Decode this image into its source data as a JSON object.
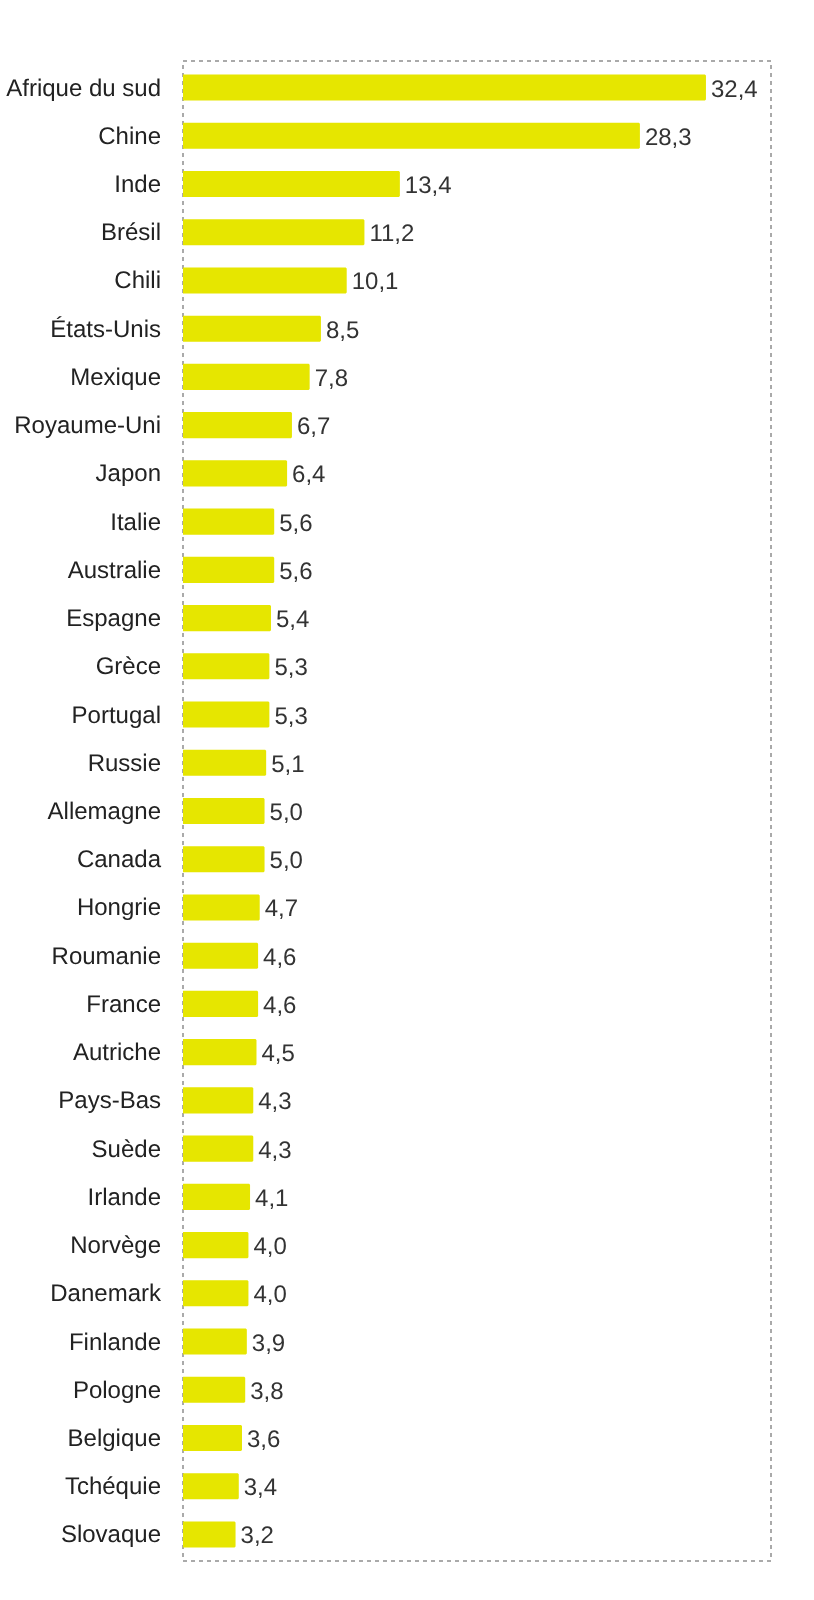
{
  "chart_data": {
    "type": "bar",
    "orientation": "horizontal",
    "categories": [
      "Afrique du sud",
      "Chine",
      "Inde",
      "Brésil",
      "Chili",
      "États-Unis",
      "Mexique",
      "Royaume-Uni",
      "Japon",
      "Italie",
      "Australie",
      "Espagne",
      "Grèce",
      "Portugal",
      "Russie",
      "Allemagne",
      "Canada",
      "Hongrie",
      "Roumanie",
      "France",
      "Autriche",
      "Pays-Bas",
      "Suède",
      "Irlande",
      "Norvège",
      "Danemark",
      "Finlande",
      "Pologne",
      "Belgique",
      "Tchéquie",
      "Slovaque"
    ],
    "values": [
      32.4,
      28.3,
      13.4,
      11.2,
      10.1,
      8.5,
      7.8,
      6.7,
      6.4,
      5.6,
      5.6,
      5.4,
      5.3,
      5.3,
      5.1,
      5.0,
      5.0,
      4.7,
      4.6,
      4.6,
      4.5,
      4.3,
      4.3,
      4.1,
      4.0,
      4.0,
      3.9,
      3.8,
      3.6,
      3.4,
      3.2
    ],
    "value_labels": [
      "32,4",
      "28,3",
      "13,4",
      "11,2",
      "10,1",
      "8,5",
      "7,8",
      "6,7",
      "6,4",
      "5,6",
      "5,6",
      "5,4",
      "5,3",
      "5,3",
      "5,1",
      "5,0",
      "5,0",
      "4,7",
      "4,6",
      "4,6",
      "4,5",
      "4,3",
      "4,3",
      "4,1",
      "4,0",
      "4,0",
      "3,9",
      "3,8",
      "3,6",
      "3,4",
      "3,2"
    ],
    "color": "#e6e600",
    "xlim": [
      0,
      36.5
    ],
    "tick_labels": "y",
    "grid": false
  }
}
